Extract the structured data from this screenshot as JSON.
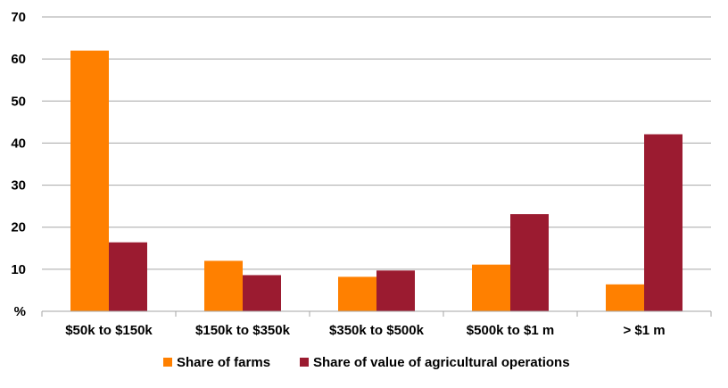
{
  "chart_data": {
    "type": "bar",
    "categories": [
      "$50k to $150k",
      "$150k to $350k",
      "$350k to $500k",
      "$500k to $1 m",
      "> $1 m"
    ],
    "series": [
      {
        "name": "Share of farms",
        "values": [
          62,
          12,
          8.2,
          11.1,
          6.4
        ],
        "color": "#ff8000"
      },
      {
        "name": "Share of value of agricultural operations",
        "values": [
          16.4,
          8.6,
          9.7,
          23.1,
          42.1
        ],
        "color": "#9b1b30"
      }
    ],
    "ylim": [
      0,
      70
    ],
    "yticks": [
      "%",
      "10",
      "20",
      "30",
      "40",
      "50",
      "60",
      "70"
    ],
    "grid": true,
    "legend_position": "bottom"
  }
}
